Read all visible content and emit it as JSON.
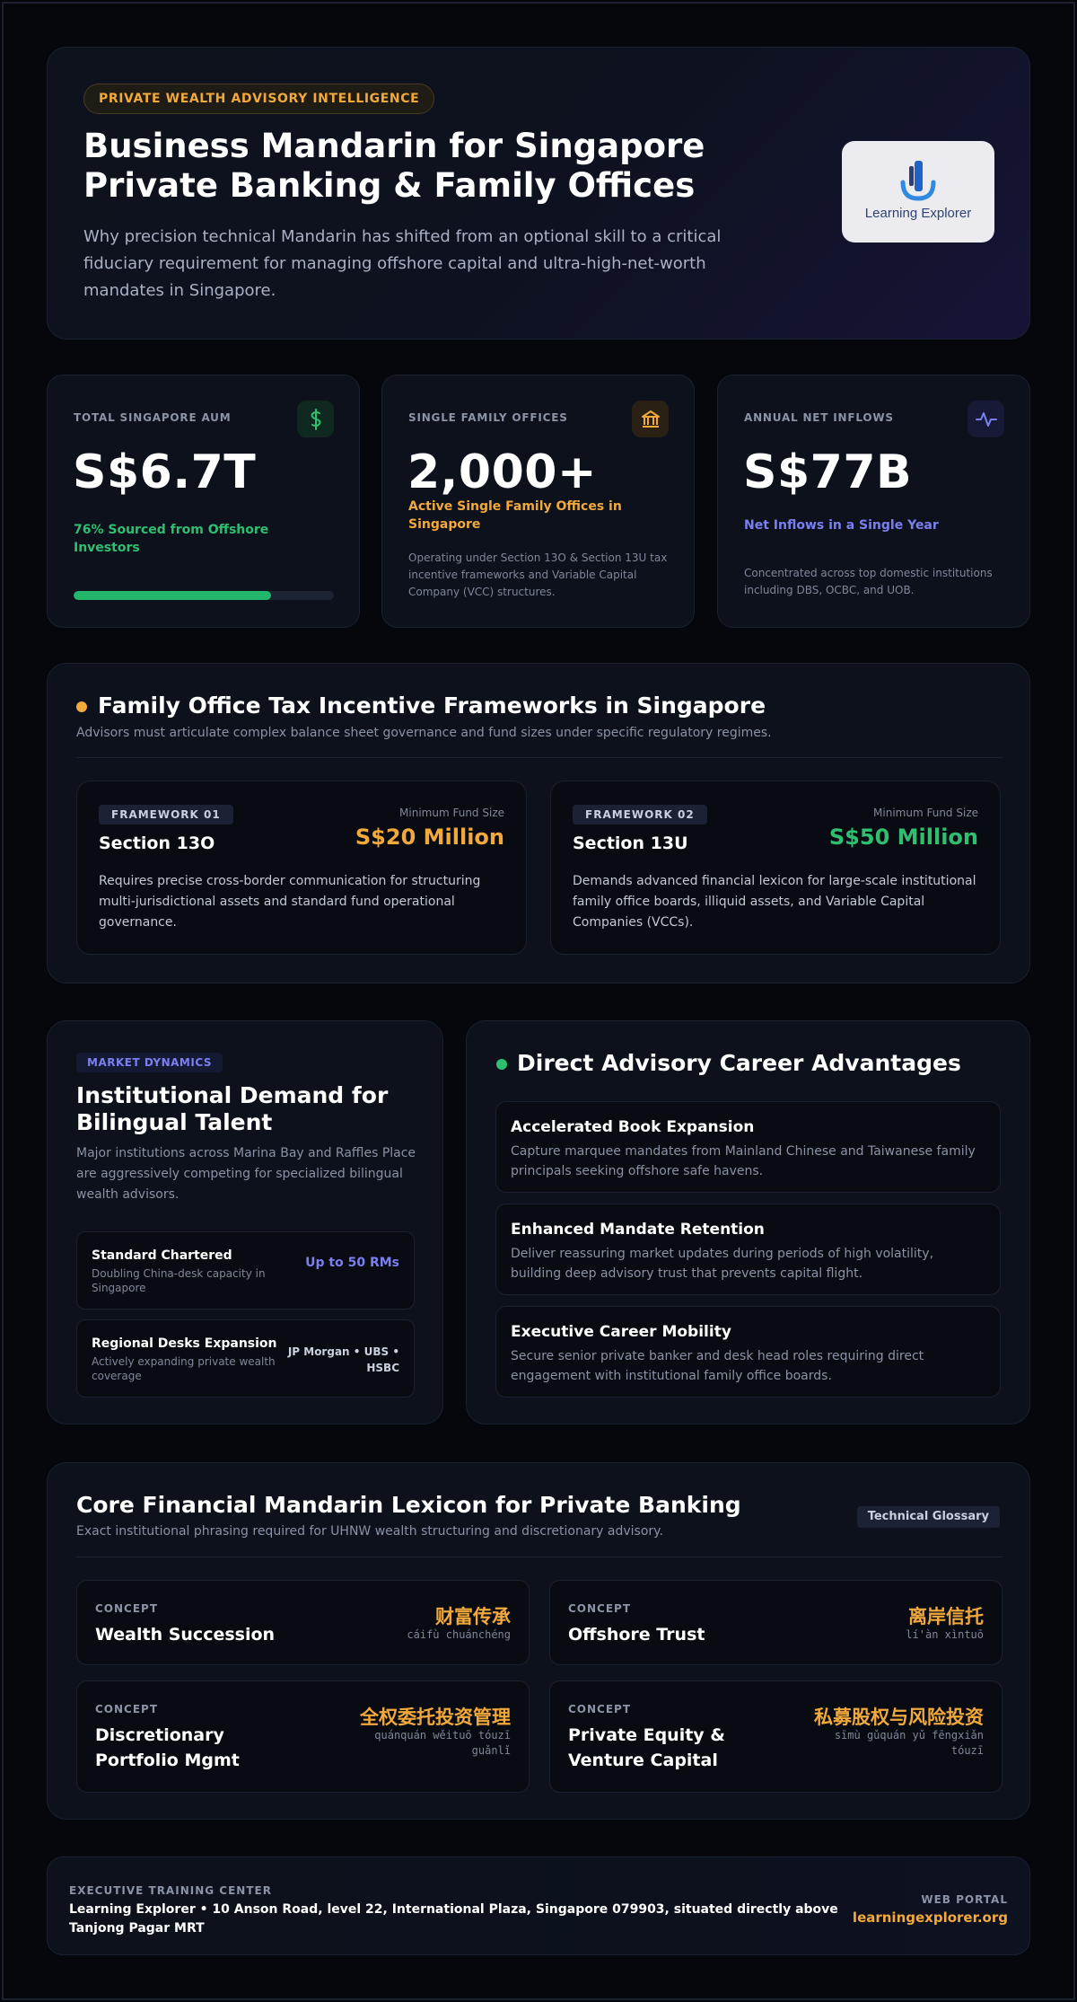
{
  "hero": {
    "badge": "PRIVATE WEALTH ADVISORY INTELLIGENCE",
    "title": "Business Mandarin for Singapore Private Banking & Family Offices",
    "description": "Why precision technical Mandarin has shifted from an optional skill to a critical fiduciary requirement for managing offshore capital and ultra-high-net-worth mandates in Singapore.",
    "logo_text": "Learning Explorer"
  },
  "stats": [
    {
      "label": "TOTAL SINGAPORE AUM",
      "icon": "dollar-icon",
      "value": "S$6.7T",
      "sub": "76% Sourced from Offshore Investors",
      "sub_color": "#2fbf71",
      "progress": 0.76
    },
    {
      "label": "SINGLE FAMILY OFFICES",
      "icon": "bank-icon",
      "value": "2,000+",
      "sub": "Active Single Family Offices in Singapore",
      "sub_color": "#f2a93b",
      "note": "Operating under Section 13O & Section 13U tax incentive frameworks and Variable Capital Company (VCC) structures."
    },
    {
      "label": "ANNUAL NET INFLOWS",
      "icon": "pulse-icon",
      "value": "S$77B",
      "sub": "Net Inflows in a Single Year",
      "sub_color": "#7b7ff0",
      "note": "Concentrated across top domestic institutions including DBS, OCBC, and UOB."
    }
  ],
  "frameworks": {
    "title": "Family Office Tax Incentive Frameworks in Singapore",
    "subtitle": "Advisors must articulate complex balance sheet governance and fund sizes under specific regulatory regimes.",
    "items": [
      {
        "badge": "FRAMEWORK 01",
        "name": "Section 13O",
        "min_label": "Minimum Fund Size",
        "amount": "S$20 Million",
        "amount_color": "#f2a93b",
        "description": "Requires precise cross-border communication for structuring multi-jurisdictional assets and standard fund operational governance."
      },
      {
        "badge": "FRAMEWORK 02",
        "name": "Section 13U",
        "min_label": "Minimum Fund Size",
        "amount": "S$50 Million",
        "amount_color": "#2fbf71",
        "description": "Demands advanced financial lexicon for large-scale institutional family office boards, illiquid assets, and Variable Capital Companies (VCCs)."
      }
    ]
  },
  "market": {
    "pill": "MARKET DYNAMICS",
    "title": "Institutional Demand for Bilingual Talent",
    "description": "Major institutions across Marina Bay and Raffles Place are aggressively competing for specialized bilingual wealth advisors.",
    "rows": [
      {
        "title": "Standard Chartered",
        "sub": "Doubling China-desk capacity in Singapore",
        "value": "Up to 50 RMs",
        "value_color": "#7b7ff0"
      },
      {
        "title": "Regional Desks Expansion",
        "sub": "Actively expanding private wealth coverage",
        "value": "JP Morgan • UBS • HSBC",
        "value_color": "#c9d0de"
      }
    ]
  },
  "advantages": {
    "title": "Direct Advisory Career Advantages",
    "items": [
      {
        "title": "Accelerated Book Expansion",
        "description": "Capture marquee mandates from Mainland Chinese and Taiwanese family principals seeking offshore safe havens."
      },
      {
        "title": "Enhanced Mandate Retention",
        "description": "Deliver reassuring market updates during periods of high volatility, building deep advisory trust that prevents capital flight."
      },
      {
        "title": "Executive Career Mobility",
        "description": "Secure senior private banker and desk head roles requiring direct engagement with institutional family office boards."
      }
    ]
  },
  "lexicon": {
    "title": "Core Financial Mandarin Lexicon for Private Banking",
    "subtitle": "Exact institutional phrasing required for UHNW wealth structuring and discretionary advisory.",
    "tag": "Technical Glossary",
    "items": [
      {
        "label": "CONCEPT",
        "term": "Wealth Succession",
        "zh": "财富传承",
        "pinyin": "cáifù chuánchéng"
      },
      {
        "label": "CONCEPT",
        "term": "Offshore Trust",
        "zh": "离岸信托",
        "pinyin": "lí'àn xìntuō"
      },
      {
        "label": "CONCEPT",
        "term": "Discretionary Portfolio Mgmt",
        "zh": "全权委托投资管理",
        "pinyin": "quánquán wěituō tóuzī guǎnlǐ"
      },
      {
        "label": "CONCEPT",
        "term": "Private Equity & Venture Capital",
        "zh": "私募股权与风险投资",
        "pinyin": "sīmù gǔquán yǔ fēngxiǎn tóuzī"
      }
    ]
  },
  "footer": {
    "label": "EXECUTIVE TRAINING CENTER",
    "address": "Learning Explorer • 10 Anson Road, level 22, International Plaza, Singapore 079903, situated directly above Tanjong Pagar MRT",
    "portal_label": "WEB PORTAL",
    "url": "learningexplorer.org"
  }
}
